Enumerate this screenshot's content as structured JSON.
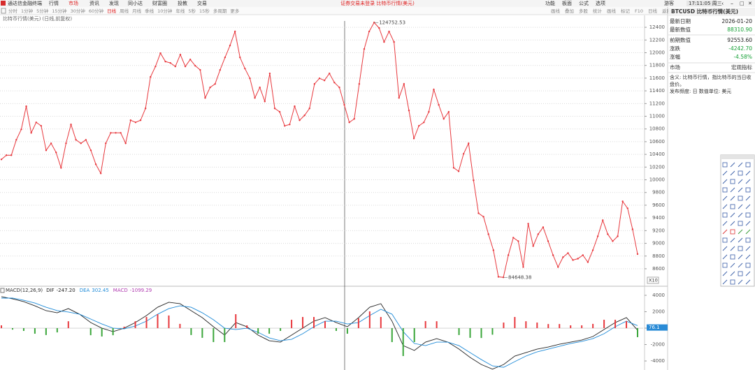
{
  "menu": {
    "app": "通达信金融终端",
    "items": [
      "行情",
      "市场",
      "资讯",
      "发现",
      "同小达",
      "财富圈",
      "投教",
      "交易"
    ],
    "active": "市场",
    "notice": "证券交易未登录 比特币行情(美元)",
    "right_items": [
      "功能",
      "板面",
      "公式",
      "选项"
    ],
    "user": "游客",
    "clock": "17:11:05 周三"
  },
  "periods": {
    "items": [
      "分时",
      "1分钟",
      "5分钟",
      "15分钟",
      "30分钟",
      "60分钟",
      "日线",
      "周线",
      "月线",
      "季线",
      "10分钟",
      "年线",
      "5秒",
      "15秒",
      "多周期",
      "更多"
    ],
    "active": "日线"
  },
  "tools": [
    "画线",
    "叠加",
    "多股",
    "统计",
    "画线",
    "标记",
    "F10",
    "日线",
    "返回"
  ],
  "chart_data": [
    {
      "type": "line",
      "title": "比特币行情(美元)",
      "subtitle": "(日线,前复权)",
      "color": "#e8383d",
      "values": [
        103210,
        103870,
        103870,
        106290,
        107940,
        111570,
        107390,
        109040,
        108490,
        104640,
        105740,
        104310,
        101890,
        105740,
        108710,
        106290,
        105740,
        106290,
        104640,
        102440,
        101010,
        105740,
        107390,
        107390,
        107390,
        105740,
        109370,
        109040,
        109370,
        111240,
        116190,
        117840,
        119930,
        118610,
        118390,
        117840,
        119710,
        117840,
        118940,
        117950,
        117290,
        112890,
        114540,
        115090,
        117290,
        119270,
        121140,
        123340,
        119270,
        117510,
        115970,
        112890,
        114540,
        112340,
        116740,
        111240,
        110690,
        108490,
        108710,
        111570,
        109370,
        110140,
        111240,
        115090,
        115970,
        115640,
        116740,
        115310,
        114540,
        111790,
        109040,
        109590,
        115090,
        120590,
        123340,
        124752.53,
        123890,
        121690,
        123340,
        121690,
        112890,
        115090,
        110910,
        106510,
        108490,
        109040,
        110690,
        114210,
        111790,
        109590,
        110690,
        101890,
        101340,
        104090,
        105740,
        99910,
        94740,
        94190,
        91440,
        88910,
        84730,
        84648.38,
        88140,
        90890,
        90340,
        86270,
        93090,
        89570,
        91440,
        92540,
        90340,
        88140,
        86270,
        87810,
        88470,
        87370,
        87590,
        88140,
        87040,
        88910,
        91110,
        93640,
        91440,
        90340,
        91110,
        96610,
        95510,
        92210,
        88310.9
      ],
      "annotations": [
        124752.53,
        84648.38
      ],
      "ylim": [
        83250,
        125000
      ],
      "yticks": [
        {
          "value": 86000,
          "label": "8600"
        },
        {
          "value": 88000,
          "label": "8800"
        },
        {
          "value": 90000,
          "label": "9000"
        },
        {
          "value": 92000,
          "label": "9200"
        },
        {
          "value": 94000,
          "label": "9400"
        },
        {
          "value": 96000,
          "label": "9600"
        },
        {
          "value": 98000,
          "label": "9800"
        },
        {
          "value": 100000,
          "label": "10000"
        },
        {
          "value": 102000,
          "label": "10200"
        },
        {
          "value": 104000,
          "label": "10400"
        },
        {
          "value": 106000,
          "label": "10600"
        },
        {
          "value": 108000,
          "label": "10800"
        },
        {
          "value": 110000,
          "label": "11000"
        },
        {
          "value": 112000,
          "label": "11200"
        },
        {
          "value": 114000,
          "label": "11400"
        },
        {
          "value": 116000,
          "label": "11600"
        },
        {
          "value": 118000,
          "label": "11800"
        },
        {
          "value": 120000,
          "label": "12000"
        },
        {
          "value": 122000,
          "label": "12200"
        },
        {
          "value": 124000,
          "label": "12400"
        }
      ],
      "scale_label": "X10",
      "grid": true
    },
    {
      "type": "macd",
      "title": "MACD(12,26,9)",
      "series": [
        {
          "name": "DIF",
          "type": "line",
          "color": "#222222",
          "last_value_label": "-247.20",
          "values": [
            3830,
            3570,
            3230,
            2720,
            2130,
            1870,
            2380,
            1700,
            680,
            0,
            -430,
            0,
            680,
            1530,
            2550,
            3150,
            2980,
            2130,
            1280,
            170,
            -850,
            680,
            170,
            -850,
            -1530,
            -1700,
            -850,
            0,
            850,
            1280,
            680,
            170,
            1280,
            2550,
            2980,
            850,
            -2130,
            -2720,
            -1700,
            -1280,
            -1700,
            -2550,
            -3570,
            -4430,
            -5000,
            -4430,
            -3400,
            -2980,
            -2550,
            -2300,
            -1960,
            -1700,
            -1450,
            -1020,
            -170,
            680,
            1280,
            -247.2
          ]
        },
        {
          "name": "DEA",
          "type": "line",
          "color": "#1f8bd8",
          "last_value_label": "302.45",
          "values": [
            3660,
            3660,
            3400,
            3060,
            2550,
            2130,
            1960,
            1700,
            1110,
            510,
            0,
            -90,
            260,
            850,
            1700,
            2380,
            2720,
            2550,
            1870,
            1020,
            0,
            -170,
            0,
            -510,
            -1190,
            -1530,
            -1360,
            -680,
            170,
            850,
            850,
            510,
            680,
            1530,
            2300,
            1700,
            -430,
            -1870,
            -2130,
            -1700,
            -1700,
            -2130,
            -2980,
            -3830,
            -4600,
            -4770,
            -4080,
            -3400,
            -2890,
            -2550,
            -2210,
            -1870,
            -1620,
            -1280,
            -680,
            170,
            850,
            302.45
          ]
        },
        {
          "name": "MACD",
          "type": "bar",
          "color": "#b03bb0",
          "color_up": "#e8383d",
          "color_down": "#3aa63a",
          "last_value_label": "-1099.29",
          "values": [
            340,
            -180,
            -340,
            -680,
            -840,
            -520,
            840,
            0,
            -860,
            -1020,
            -860,
            180,
            840,
            1360,
            1700,
            1540,
            520,
            -840,
            -1180,
            -1700,
            -1700,
            1700,
            340,
            -680,
            -680,
            -340,
            1020,
            1360,
            1360,
            860,
            -340,
            -680,
            1200,
            2040,
            1360,
            -1700,
            -3400,
            -1700,
            860,
            840,
            0,
            -840,
            -1180,
            -1200,
            -800,
            680,
            1360,
            840,
            680,
            500,
            500,
            340,
            340,
            520,
            1020,
            1020,
            860,
            -1099.29
          ]
        }
      ],
      "ylim": [
        -5100,
        4850
      ],
      "yticks": [
        -4000,
        -2000,
        {
          "value": 0,
          "label": "0.00"
        },
        2000,
        4000
      ],
      "cursor": 76.1
    }
  ],
  "info_panel": {
    "title": "BTCUSD 比特币行情(美元)",
    "rows": [
      [
        "最新日期",
        "2026-01-20"
      ],
      [
        "最新数值",
        "88310.90"
      ],
      [
        "前期数值",
        "92553.60"
      ],
      [
        "涨跌",
        "-4242.70"
      ],
      [
        "涨幅",
        "-4.58%"
      ]
    ],
    "market": [
      "市场",
      "宏观指标"
    ],
    "description": [
      "含义: 比特币行情，指比特币的当日收",
      "盘价。",
      "发布频度: 日    数值单位: 美元"
    ]
  }
}
